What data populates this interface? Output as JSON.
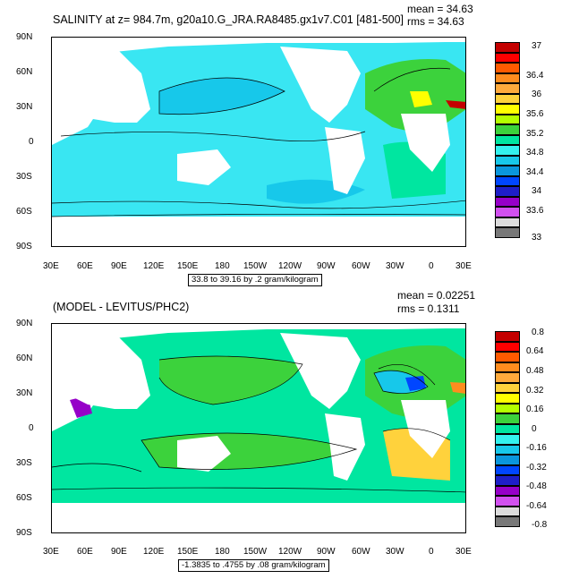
{
  "colors": {
    "ocean_main": "#39E6F2",
    "ocean_light": "#17C8EA",
    "land": "#FFFFFF"
  },
  "panels": [
    {
      "title": "SALINITY at z= 984.7m, g20a10.G_JRA.RA8485.gx1v7.C01 [481-500]",
      "mean": "mean = 34.63",
      "rms": "rms = 34.63",
      "range_note": "33.8 to 39.16 by .2 gram/kilogram",
      "lat_ticks": [
        "90N",
        "60N",
        "30N",
        "0",
        "30S",
        "60S",
        "90S"
      ],
      "lon_ticks": [
        "30E",
        "60E",
        "90E",
        "120E",
        "150E",
        "180",
        "150W",
        "120W",
        "90W",
        "60W",
        "30W",
        "0",
        "30E"
      ],
      "colorbar": {
        "labels": [
          "37",
          "36.4",
          "36",
          "35.6",
          "35.2",
          "34.8",
          "34.4",
          "34",
          "33.6",
          "33"
        ],
        "colors": [
          "#C40000",
          "#FF0000",
          "#FF5A00",
          "#FF8C1E",
          "#FFAA3C",
          "#FFD23C",
          "#FFFF00",
          "#B4FF00",
          "#3CD23C",
          "#00E6A0",
          "#33F2EE",
          "#17C8EA",
          "#0A96DC",
          "#0046FF",
          "#1E1EC8",
          "#9600C8",
          "#D250F0",
          "#DCDCDC",
          "#787878"
        ]
      }
    },
    {
      "title": "(MODEL - LEVITUS/PHC2)",
      "mean": "mean = 0.02251",
      "rms": "rms = 0.1311",
      "range_note": "-1.3835 to .4755 by .08 gram/kilogram",
      "lat_ticks": [
        "90N",
        "60N",
        "30N",
        "0",
        "30S",
        "60S",
        "90S"
      ],
      "lon_ticks": [
        "30E",
        "60E",
        "90E",
        "120E",
        "150E",
        "180",
        "150W",
        "120W",
        "90W",
        "60W",
        "30W",
        "0",
        "30E"
      ],
      "colorbar": {
        "labels": [
          "0.8",
          "0.64",
          "0.48",
          "0.32",
          "0.16",
          "0",
          "-0.16",
          "-0.32",
          "-0.48",
          "-0.64",
          "-0.8"
        ],
        "colors": [
          "#C40000",
          "#FF0000",
          "#FF5A00",
          "#FF8C1E",
          "#FFAA3C",
          "#FFD23C",
          "#FFFF00",
          "#B4FF00",
          "#3CD23C",
          "#00E6A0",
          "#33F2EE",
          "#17C8EA",
          "#0A96DC",
          "#0046FF",
          "#1E1EC8",
          "#9600C8",
          "#D250F0",
          "#DCDCDC",
          "#787878"
        ]
      }
    }
  ],
  "chart_data": [
    {
      "type": "heatmap",
      "title": "SALINITY at z= 984.7m, g20a10.G_JRA.RA8485.gx1v7.C01 [481-500]",
      "variable": "salinity",
      "units": "gram/kilogram",
      "mean": 34.63,
      "rms": 34.63,
      "contour_min": 33.8,
      "contour_max": 39.16,
      "contour_interval": 0.2,
      "x_ticks": [
        "30E",
        "60E",
        "90E",
        "120E",
        "150E",
        "180",
        "150W",
        "120W",
        "90W",
        "60W",
        "30W",
        "0",
        "30E"
      ],
      "y_ticks": [
        "90N",
        "60N",
        "30N",
        "0",
        "30S",
        "60S",
        "90S"
      ],
      "colorbar_labels": [
        37,
        36.4,
        36,
        35.6,
        35.2,
        34.8,
        34.4,
        34,
        33.6,
        33
      ]
    },
    {
      "type": "heatmap",
      "title": "(MODEL - LEVITUS/PHC2)",
      "variable": "salinity difference",
      "units": "gram/kilogram",
      "mean": 0.02251,
      "rms": 0.1311,
      "contour_min": -1.3835,
      "contour_max": 0.4755,
      "contour_interval": 0.08,
      "x_ticks": [
        "30E",
        "60E",
        "90E",
        "120E",
        "150E",
        "180",
        "150W",
        "120W",
        "90W",
        "60W",
        "30W",
        "0",
        "30E"
      ],
      "y_ticks": [
        "90N",
        "60N",
        "30N",
        "0",
        "30S",
        "60S",
        "90S"
      ],
      "colorbar_labels": [
        0.8,
        0.64,
        0.48,
        0.32,
        0.16,
        0,
        -0.16,
        -0.32,
        -0.48,
        -0.64,
        -0.8
      ]
    }
  ]
}
